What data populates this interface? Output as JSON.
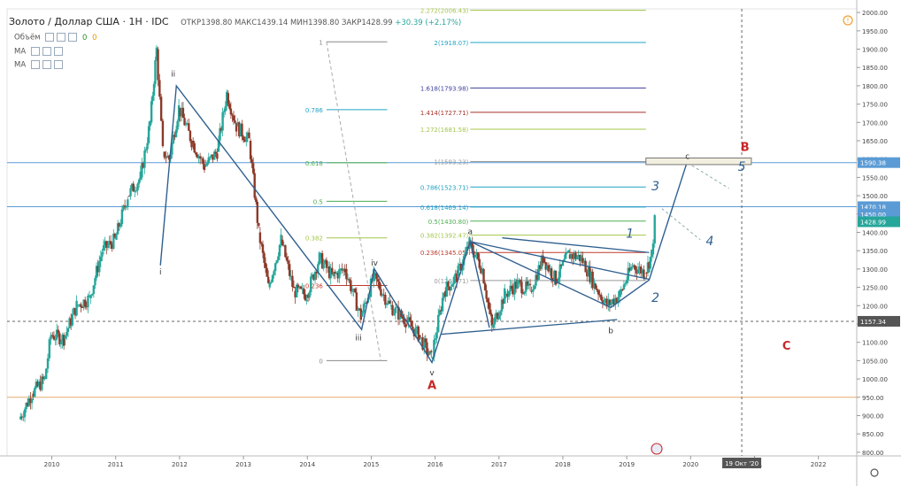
{
  "header": {
    "symbol": "Золото / Доллар США · 1Н · IDC",
    "ohlc_open": "ОТКР1398.80",
    "ohlc_high": "МАКС1439.14",
    "ohlc_low": "МИН1398.80",
    "ohlc_close": "ЗАКР1428.99",
    "change": "+30.39 (+2.17%)"
  },
  "indicators": [
    {
      "label": "Объём",
      "value_a": "0",
      "value_b": "0"
    },
    {
      "label": "MA",
      "value_a": "",
      "value_b": ""
    },
    {
      "label": "MA",
      "value_a": "",
      "value_b": ""
    }
  ],
  "colors": {
    "candle_up": "#26a69a",
    "candle_down": "#8b3a2a",
    "wave_line": "#2f5f8f",
    "fib_outer": "#a3c74b",
    "label_red": "#c62828"
  },
  "chart_data": {
    "type": "candlestick",
    "title": "Золото / Доллар США",
    "x_ticks": [
      "2010",
      "2011",
      "2012",
      "2013",
      "2014",
      "2015",
      "2016",
      "2017",
      "2018",
      "2019",
      "2020",
      "2021",
      "2022"
    ],
    "y_ticks": [
      "800.00",
      "850.00",
      "900.00",
      "950.00",
      "1000.00",
      "1050.00",
      "1100.00",
      "1150.00",
      "1200.00",
      "1250.00",
      "1300.00",
      "1350.00",
      "1400.00",
      "1450.00",
      "1500.00",
      "1550.00",
      "1600.00",
      "1650.00",
      "1700.00",
      "1750.00",
      "1800.00",
      "1850.00",
      "1900.00",
      "1950.00",
      "2000.00"
    ],
    "ylim": [
      790,
      2010
    ],
    "xlim": [
      2009.3,
      2022.6
    ],
    "price_tags": [
      {
        "value": 1590.38,
        "label": "1590.38"
      },
      {
        "value": 1470.18,
        "label": "1470.18"
      },
      {
        "value": 1450.0,
        "label": "1450.00"
      },
      {
        "value": 1428.99,
        "label": "1428.99"
      },
      {
        "value": 1157.34,
        "label": "1157.34"
      },
      {
        "value": 800.0,
        "label": "800.00"
      }
    ],
    "date_tag": "19 Окт '20",
    "fib_extension": [
      {
        "label": "2.272(2006.43)",
        "value": 2006.43
      },
      {
        "label": "2(1918.07)",
        "value": 1918.07
      },
      {
        "label": "1.618(1793.98)",
        "value": 1793.98
      },
      {
        "label": "1.414(1727.71)",
        "value": 1727.71
      },
      {
        "label": "1.272(1681.58)",
        "value": 1681.58
      },
      {
        "label": "1(1593.23)",
        "value": 1593.23
      },
      {
        "label": "0.786(1523.71)",
        "value": 1523.71
      },
      {
        "label": "0.618(1469.14)",
        "value": 1469.14
      },
      {
        "label": "0.5(1430.80)",
        "value": 1430.8
      },
      {
        "label": "0.382(1392.47)",
        "value": 1392.47
      },
      {
        "label": "0.236(1345.05)",
        "value": 1345.05
      },
      {
        "label": "0(1268.71)",
        "value": 1268.71
      }
    ],
    "fib_retracement": [
      {
        "label": "1",
        "value": 1920
      },
      {
        "label": "0.786",
        "value": 1735
      },
      {
        "label": "0.618",
        "value": 1590
      },
      {
        "label": "0.5",
        "value": 1485
      },
      {
        "label": "0.382",
        "value": 1385
      },
      {
        "label": "0.236",
        "value": 1255
      },
      {
        "label": "0",
        "value": 1050
      }
    ],
    "wave_labels": [
      {
        "text": "i",
        "x": 2011.7,
        "y": 1285
      },
      {
        "text": "ii",
        "x": 2011.9,
        "y": 1825
      },
      {
        "text": "iii",
        "x": 2014.8,
        "y": 1105
      },
      {
        "text": "iv",
        "x": 2015.05,
        "y": 1310
      },
      {
        "text": "v",
        "x": 2015.95,
        "y": 1010
      },
      {
        "text": "a",
        "x": 2016.55,
        "y": 1395
      },
      {
        "text": "b",
        "x": 2018.75,
        "y": 1125
      },
      {
        "text": "c",
        "x": 2019.95,
        "y": 1600
      },
      {
        "text": "1",
        "x": 2019.05,
        "y": 1385
      },
      {
        "text": "2",
        "x": 2019.45,
        "y": 1210
      },
      {
        "text": "3",
        "x": 2019.45,
        "y": 1515
      },
      {
        "text": "4",
        "x": 2020.3,
        "y": 1365
      },
      {
        "text": "5",
        "x": 2020.8,
        "y": 1568
      }
    ],
    "big_labels": [
      {
        "text": "A",
        "x": 2015.95,
        "y": 973
      },
      {
        "text": "B",
        "x": 2020.85,
        "y": 1622
      },
      {
        "text": "C",
        "x": 2021.5,
        "y": 1080
      }
    ],
    "wave_path": [
      [
        2011.7,
        1310
      ],
      [
        2011.95,
        1800
      ],
      [
        2014.85,
        1135
      ],
      [
        2015.05,
        1300
      ],
      [
        2015.95,
        1045
      ],
      [
        2016.55,
        1375
      ],
      [
        2016.85,
        1140
      ],
      [
        2016.55,
        1375
      ],
      [
        2018.75,
        1195
      ],
      [
        2019.35,
        1270
      ],
      [
        2019.95,
        1595
      ]
    ],
    "triangle_lines": [
      [
        [
          2016.1,
          1122
        ],
        [
          2018.85,
          1162
        ]
      ],
      [
        [
          2016.55,
          1375
        ],
        [
          2019.35,
          1272
        ]
      ],
      [
        [
          2017.05,
          1385
        ],
        [
          2019.35,
          1345
        ]
      ]
    ],
    "horizontal_lines": [
      {
        "value": 1590.38,
        "color": "#5b9bd5"
      },
      {
        "value": 1470.18,
        "color": "#5b9bd5"
      },
      {
        "value": 950,
        "color": "#e6a96b"
      }
    ],
    "target_box": {
      "x0": 2019.3,
      "x1": 2020.95,
      "y0": 1585,
      "y1": 1603
    },
    "price_series": [
      [
        2009.5,
        890
      ],
      [
        2009.7,
        960
      ],
      [
        2009.9,
        1000
      ],
      [
        2010.0,
        1120
      ],
      [
        2010.2,
        1110
      ],
      [
        2010.4,
        1200
      ],
      [
        2010.6,
        1220
      ],
      [
        2010.8,
        1350
      ],
      [
        2011.0,
        1380
      ],
      [
        2011.2,
        1500
      ],
      [
        2011.4,
        1550
      ],
      [
        2011.55,
        1700
      ],
      [
        2011.65,
        1900
      ],
      [
        2011.75,
        1620
      ],
      [
        2011.85,
        1600
      ],
      [
        2012.0,
        1740
      ],
      [
        2012.2,
        1650
      ],
      [
        2012.4,
        1580
      ],
      [
        2012.6,
        1620
      ],
      [
        2012.75,
        1780
      ],
      [
        2012.9,
        1690
      ],
      [
        2013.1,
        1650
      ],
      [
        2013.25,
        1400
      ],
      [
        2013.4,
        1250
      ],
      [
        2013.6,
        1380
      ],
      [
        2013.8,
        1240
      ],
      [
        2014.0,
        1230
      ],
      [
        2014.2,
        1330
      ],
      [
        2014.4,
        1280
      ],
      [
        2014.6,
        1300
      ],
      [
        2014.85,
        1170
      ],
      [
        2015.05,
        1280
      ],
      [
        2015.3,
        1200
      ],
      [
        2015.55,
        1160
      ],
      [
        2015.75,
        1120
      ],
      [
        2015.95,
        1055
      ],
      [
        2016.15,
        1240
      ],
      [
        2016.35,
        1280
      ],
      [
        2016.55,
        1370
      ],
      [
        2016.75,
        1300
      ],
      [
        2016.9,
        1140
      ],
      [
        2017.1,
        1230
      ],
      [
        2017.3,
        1260
      ],
      [
        2017.5,
        1240
      ],
      [
        2017.7,
        1330
      ],
      [
        2017.9,
        1270
      ],
      [
        2018.1,
        1340
      ],
      [
        2018.3,
        1330
      ],
      [
        2018.5,
        1260
      ],
      [
        2018.7,
        1200
      ],
      [
        2018.9,
        1230
      ],
      [
        2019.1,
        1310
      ],
      [
        2019.3,
        1290
      ],
      [
        2019.4,
        1340
      ],
      [
        2019.45,
        1430
      ]
    ]
  }
}
